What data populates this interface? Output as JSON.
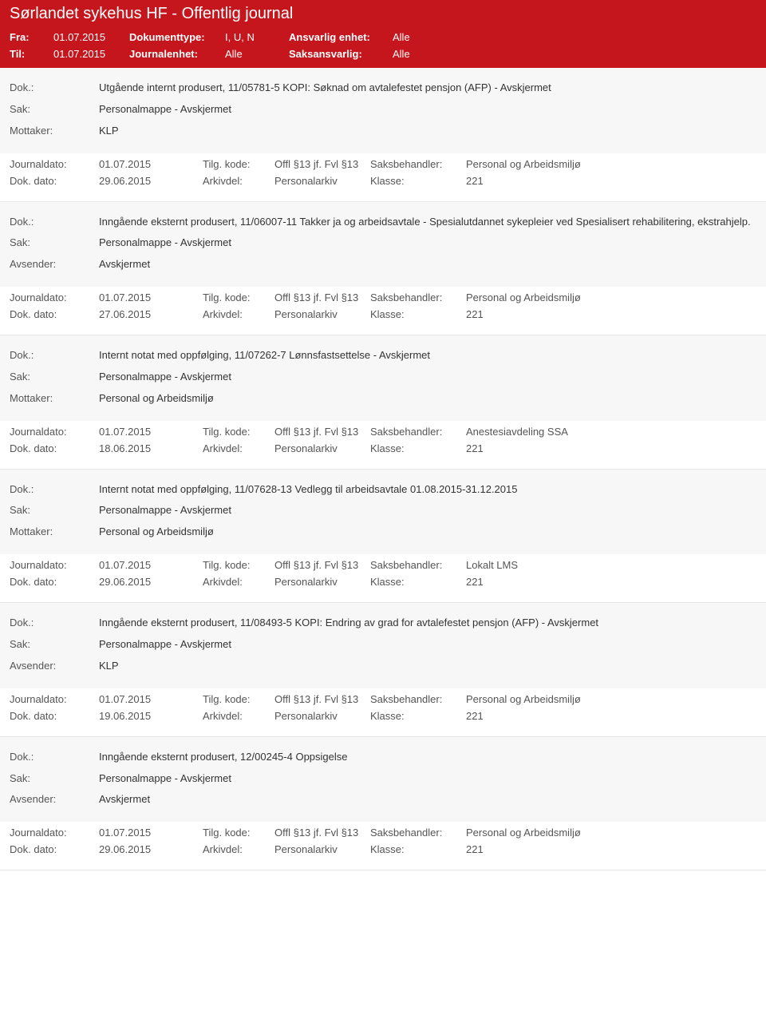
{
  "header": {
    "title": "Sørlandet sykehus HF - Offentlig journal",
    "fra_label": "Fra:",
    "fra_value": "01.07.2015",
    "til_label": "Til:",
    "til_value": "01.07.2015",
    "doktype_label": "Dokumenttype:",
    "doktype_value": "I, U, N",
    "journalenhet_label": "Journalenhet:",
    "journalenhet_value": "Alle",
    "ansvarlig_label": "Ansvarlig enhet:",
    "ansvarlig_value": "Alle",
    "saksansvarlig_label": "Saksansvarlig:",
    "saksansvarlig_value": "Alle"
  },
  "labels": {
    "dok": "Dok.:",
    "sak": "Sak:",
    "mottaker": "Mottaker:",
    "avsender": "Avsender:",
    "journaldato": "Journaldato:",
    "dokdato": "Dok. dato:",
    "tilgkode": "Tilg. kode:",
    "arkivdel": "Arkivdel:",
    "saksbehandler": "Saksbehandler:",
    "klasse": "Klasse:"
  },
  "entries": [
    {
      "dok": "Utgående internt produsert, 11/05781-5 KOPI: Søknad om avtalefestet pensjon (AFP) - Avskjermet",
      "sak": "Personalmappe - Avskjermet",
      "party_label": "Mottaker:",
      "party_value": "KLP",
      "journaldato": "01.07.2015",
      "tilgkode": "Offl §13 jf. Fvl §13",
      "saksbehandler": "Personal og Arbeidsmiljø",
      "dokdato": "29.06.2015",
      "arkivdel": "Personalarkiv",
      "klasse": "221"
    },
    {
      "dok": "Inngående eksternt produsert, 11/06007-11 Takker ja og arbeidsavtale - Spesialutdannet sykepleier ved Spesialisert rehabilitering, ekstrahjelp.",
      "sak": "Personalmappe - Avskjermet",
      "party_label": "Avsender:",
      "party_value": "Avskjermet",
      "journaldato": "01.07.2015",
      "tilgkode": "Offl §13 jf. Fvl §13",
      "saksbehandler": "Personal og Arbeidsmiljø",
      "dokdato": "27.06.2015",
      "arkivdel": "Personalarkiv",
      "klasse": "221"
    },
    {
      "dok": "Internt notat med oppfølging, 11/07262-7 Lønnsfastsettelse - Avskjermet",
      "sak": "Personalmappe - Avskjermet",
      "party_label": "Mottaker:",
      "party_value": "Personal og Arbeidsmiljø",
      "journaldato": "01.07.2015",
      "tilgkode": "Offl §13 jf. Fvl §13",
      "saksbehandler": "Anestesiavdeling SSA",
      "dokdato": "18.06.2015",
      "arkivdel": "Personalarkiv",
      "klasse": "221"
    },
    {
      "dok": "Internt notat med oppfølging, 11/07628-13 Vedlegg til arbeidsavtale 01.08.2015-31.12.2015",
      "sak": "Personalmappe - Avskjermet",
      "party_label": "Mottaker:",
      "party_value": "Personal og Arbeidsmiljø",
      "journaldato": "01.07.2015",
      "tilgkode": "Offl §13 jf. Fvl §13",
      "saksbehandler": "Lokalt LMS",
      "dokdato": "29.06.2015",
      "arkivdel": "Personalarkiv",
      "klasse": "221"
    },
    {
      "dok": "Inngående eksternt produsert, 11/08493-5 KOPI: Endring av grad for avtalefestet pensjon (AFP) - Avskjermet",
      "sak": "Personalmappe - Avskjermet",
      "party_label": "Avsender:",
      "party_value": "KLP",
      "journaldato": "01.07.2015",
      "tilgkode": "Offl §13 jf. Fvl §13",
      "saksbehandler": "Personal og Arbeidsmiljø",
      "dokdato": "19.06.2015",
      "arkivdel": "Personalarkiv",
      "klasse": "221"
    },
    {
      "dok": "Inngående eksternt produsert, 12/00245-4 Oppsigelse",
      "sak": "Personalmappe - Avskjermet",
      "party_label": "Avsender:",
      "party_value": "Avskjermet",
      "journaldato": "01.07.2015",
      "tilgkode": "Offl §13 jf. Fvl §13",
      "saksbehandler": "Personal og Arbeidsmiljø",
      "dokdato": "29.06.2015",
      "arkivdel": "Personalarkiv",
      "klasse": "221"
    }
  ]
}
